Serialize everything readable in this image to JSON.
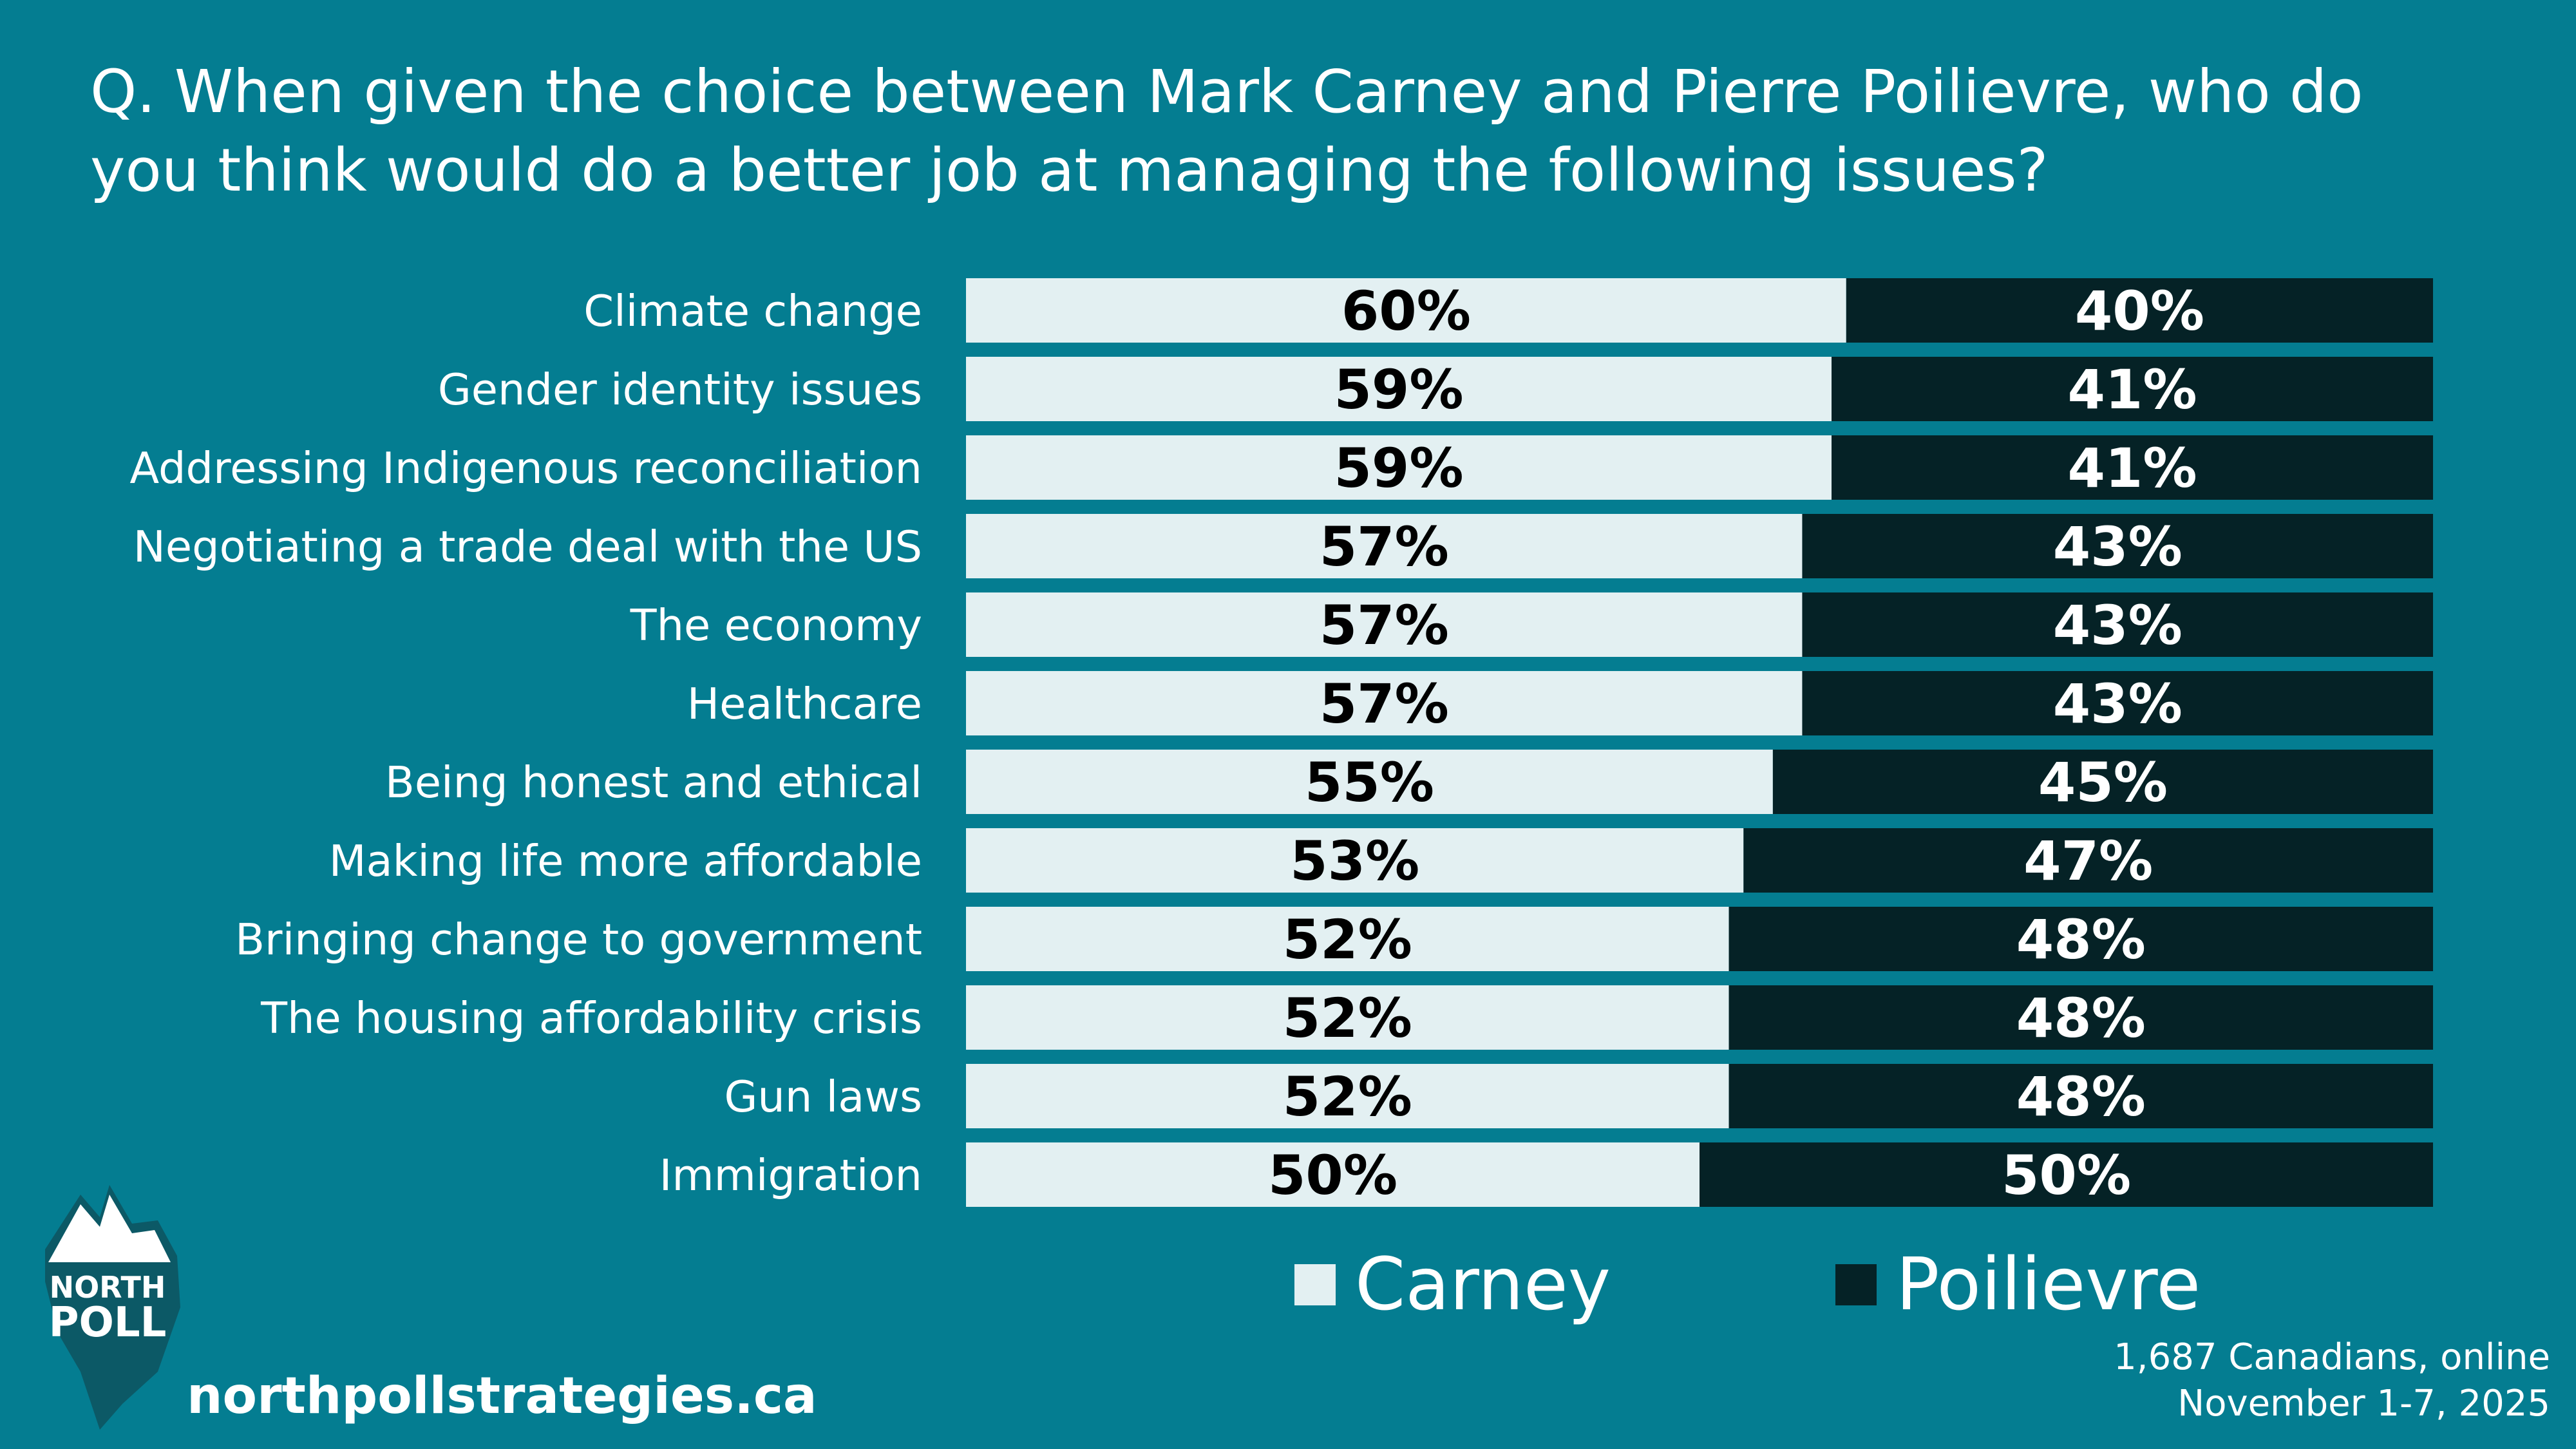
{
  "title": "Q. When given the choice between Mark Carney and Pierre Poilievre, who do you think would do a better job at managing the following issues?",
  "chart_data": {
    "type": "bar",
    "orientation": "horizontal",
    "stacked": true,
    "percent_stacked": true,
    "title": "Q. When given the choice between Mark Carney and Pierre Poilievre, who do you think would do a better job at managing the following issues?",
    "xlabel": "",
    "ylabel": "",
    "xlim": [
      0,
      100
    ],
    "categories": [
      "Climate change",
      "Gender identity issues",
      "Addressing Indigenous reconciliation",
      "Negotiating a trade deal with the US",
      "The economy",
      "Healthcare",
      "Being honest and ethical",
      "Making life more affordable",
      "Bringing change to government",
      "The housing affordability crisis",
      "Gun laws",
      "Immigration"
    ],
    "series": [
      {
        "name": "Carney",
        "color": "#e3f0f2",
        "label_color": "#000000",
        "values": [
          60,
          59,
          59,
          57,
          57,
          57,
          55,
          53,
          52,
          52,
          52,
          50
        ]
      },
      {
        "name": "Poilievre",
        "color": "#052226",
        "label_color": "#ffffff",
        "values": [
          40,
          41,
          41,
          43,
          43,
          43,
          45,
          47,
          48,
          48,
          48,
          50
        ]
      }
    ],
    "value_suffix": "%",
    "legend_position": "bottom"
  },
  "legend": {
    "carney": "Carney",
    "poilievre": "Poilievre"
  },
  "logo": {
    "line1": "NORTH",
    "line2": "POLL"
  },
  "website": "northpollstrategies.ca",
  "source": {
    "line1": "1,687 Canadians, online",
    "line2": "November 1-7, 2025"
  },
  "colors": {
    "background": "#047d91",
    "carney": "#e3f0f2",
    "poilievre": "#052226"
  }
}
